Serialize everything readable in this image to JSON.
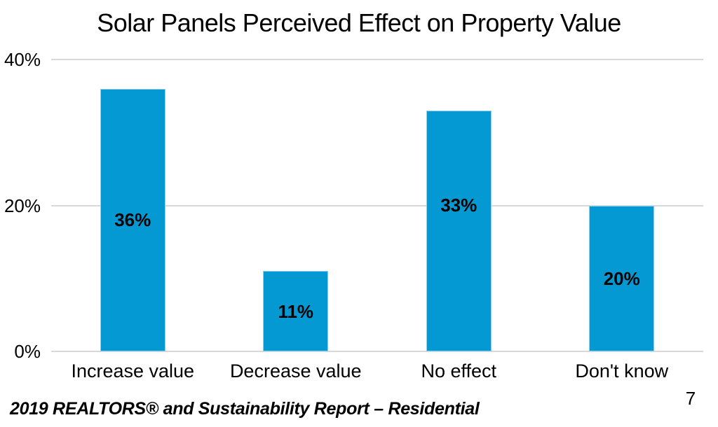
{
  "title": "Solar Panels Perceived Effect on Property Value",
  "footer": {
    "source_text": "2019 REALTORS® and Sustainability Report – Residential",
    "page_number": "7"
  },
  "chart_data": {
    "type": "bar",
    "title": "Solar Panels Perceived Effect on Property Value",
    "categories": [
      "Increase value",
      "Decrease value",
      "No effect",
      "Don't know"
    ],
    "values": [
      36,
      11,
      33,
      20
    ],
    "data_labels": [
      "36%",
      "11%",
      "33%",
      "20%"
    ],
    "y_ticks": [
      {
        "value": 0,
        "label": "0%"
      },
      {
        "value": 20,
        "label": "20%"
      },
      {
        "value": 40,
        "label": "40%"
      }
    ],
    "ylim": [
      0,
      40
    ],
    "xlabel": "",
    "ylabel": "",
    "grid": "horizontal",
    "legend": "none",
    "bar_color": "#0599d3",
    "gridline_color": "#d9d9d9",
    "text_color": "#000000"
  }
}
